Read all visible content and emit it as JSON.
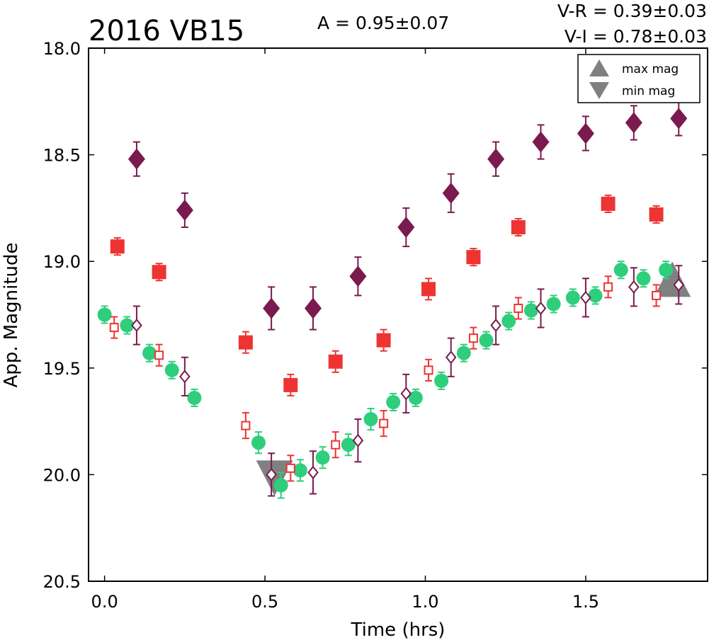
{
  "chart_data": {
    "type": "scatter",
    "title": "2016 VB15",
    "annotations": {
      "amplitude": "A  = 0.95±0.07",
      "v_r": "V-R = 0.39±0.03",
      "v_i": "V-I  = 0.78±0.03"
    },
    "xlabel": "Time (hrs)",
    "ylabel": "App. Magnitude",
    "xlim": [
      -0.05,
      1.88
    ],
    "ylim": [
      20.5,
      18.0
    ],
    "y_inverted": true,
    "x_ticks": [
      "0.0",
      "0.5",
      "1.0",
      "1.5"
    ],
    "y_ticks": [
      "18.0",
      "18.5",
      "19.0",
      "19.5",
      "20.0",
      "20.5"
    ],
    "legend": {
      "placement": "top-right",
      "entries": [
        {
          "label": "max mag",
          "marker": "triangle-up",
          "color": "#808080"
        },
        {
          "label": "min mag",
          "marker": "triangle-down",
          "color": "#808080"
        }
      ]
    },
    "series": [
      {
        "marker": "diamond-filled",
        "color": "#7a1a4e",
        "points": [
          {
            "x": 0.1,
            "y": 18.52,
            "err": 0.08
          },
          {
            "x": 0.25,
            "y": 18.76,
            "err": 0.08
          },
          {
            "x": 0.52,
            "y": 19.22,
            "err": 0.1
          },
          {
            "x": 0.65,
            "y": 19.22,
            "err": 0.1
          },
          {
            "x": 0.79,
            "y": 19.07,
            "err": 0.09
          },
          {
            "x": 0.94,
            "y": 18.84,
            "err": 0.09
          },
          {
            "x": 1.08,
            "y": 18.68,
            "err": 0.09
          },
          {
            "x": 1.22,
            "y": 18.52,
            "err": 0.08
          },
          {
            "x": 1.36,
            "y": 18.44,
            "err": 0.08
          },
          {
            "x": 1.5,
            "y": 18.4,
            "err": 0.08
          },
          {
            "x": 1.65,
            "y": 18.35,
            "err": 0.08
          },
          {
            "x": 1.79,
            "y": 18.33,
            "err": 0.08
          }
        ]
      },
      {
        "marker": "square-filled",
        "color": "#ee3333",
        "points": [
          {
            "x": 0.04,
            "y": 18.93,
            "err": 0.04
          },
          {
            "x": 0.17,
            "y": 19.05,
            "err": 0.04
          },
          {
            "x": 0.44,
            "y": 19.38,
            "err": 0.05
          },
          {
            "x": 0.58,
            "y": 19.58,
            "err": 0.05
          },
          {
            "x": 0.72,
            "y": 19.47,
            "err": 0.05
          },
          {
            "x": 0.87,
            "y": 19.37,
            "err": 0.05
          },
          {
            "x": 1.01,
            "y": 19.13,
            "err": 0.05
          },
          {
            "x": 1.15,
            "y": 18.98,
            "err": 0.04
          },
          {
            "x": 1.29,
            "y": 18.84,
            "err": 0.04
          },
          {
            "x": 1.57,
            "y": 18.73,
            "err": 0.04
          },
          {
            "x": 1.72,
            "y": 18.78,
            "err": 0.04
          }
        ]
      },
      {
        "marker": "circle-filled",
        "color": "#2fce7c",
        "points": [
          {
            "x": 0.0,
            "y": 19.25,
            "err": 0.04
          },
          {
            "x": 0.07,
            "y": 19.3,
            "err": 0.04
          },
          {
            "x": 0.14,
            "y": 19.43,
            "err": 0.04
          },
          {
            "x": 0.21,
            "y": 19.51,
            "err": 0.04
          },
          {
            "x": 0.28,
            "y": 19.64,
            "err": 0.04
          },
          {
            "x": 0.48,
            "y": 19.85,
            "err": 0.05
          },
          {
            "x": 0.55,
            "y": 20.05,
            "err": 0.06
          },
          {
            "x": 0.61,
            "y": 19.98,
            "err": 0.05
          },
          {
            "x": 0.68,
            "y": 19.92,
            "err": 0.05
          },
          {
            "x": 0.76,
            "y": 19.86,
            "err": 0.05
          },
          {
            "x": 0.83,
            "y": 19.74,
            "err": 0.05
          },
          {
            "x": 0.9,
            "y": 19.66,
            "err": 0.04
          },
          {
            "x": 0.97,
            "y": 19.64,
            "err": 0.04
          },
          {
            "x": 1.05,
            "y": 19.56,
            "err": 0.04
          },
          {
            "x": 1.12,
            "y": 19.43,
            "err": 0.04
          },
          {
            "x": 1.19,
            "y": 19.37,
            "err": 0.04
          },
          {
            "x": 1.26,
            "y": 19.28,
            "err": 0.04
          },
          {
            "x": 1.33,
            "y": 19.23,
            "err": 0.04
          },
          {
            "x": 1.4,
            "y": 19.2,
            "err": 0.04
          },
          {
            "x": 1.46,
            "y": 19.17,
            "err": 0.04
          },
          {
            "x": 1.53,
            "y": 19.16,
            "err": 0.04
          },
          {
            "x": 1.61,
            "y": 19.04,
            "err": 0.04
          },
          {
            "x": 1.68,
            "y": 19.08,
            "err": 0.04
          },
          {
            "x": 1.75,
            "y": 19.04,
            "err": 0.04
          }
        ]
      },
      {
        "marker": "square-open",
        "color": "#ee3333",
        "points": [
          {
            "x": 0.03,
            "y": 19.31,
            "err": 0.05
          },
          {
            "x": 0.17,
            "y": 19.44,
            "err": 0.05
          },
          {
            "x": 0.44,
            "y": 19.77,
            "err": 0.06
          },
          {
            "x": 0.58,
            "y": 19.97,
            "err": 0.06
          },
          {
            "x": 0.72,
            "y": 19.86,
            "err": 0.06
          },
          {
            "x": 0.87,
            "y": 19.76,
            "err": 0.06
          },
          {
            "x": 1.01,
            "y": 19.51,
            "err": 0.05
          },
          {
            "x": 1.15,
            "y": 19.36,
            "err": 0.05
          },
          {
            "x": 1.29,
            "y": 19.22,
            "err": 0.05
          },
          {
            "x": 1.57,
            "y": 19.12,
            "err": 0.05
          },
          {
            "x": 1.72,
            "y": 19.16,
            "err": 0.05
          }
        ]
      },
      {
        "marker": "diamond-open",
        "color": "#7a1a4e",
        "points": [
          {
            "x": 0.1,
            "y": 19.3,
            "err": 0.09
          },
          {
            "x": 0.25,
            "y": 19.54,
            "err": 0.09
          },
          {
            "x": 0.52,
            "y": 20.0,
            "err": 0.1
          },
          {
            "x": 0.65,
            "y": 19.99,
            "err": 0.1
          },
          {
            "x": 0.79,
            "y": 19.84,
            "err": 0.1
          },
          {
            "x": 0.94,
            "y": 19.62,
            "err": 0.09
          },
          {
            "x": 1.08,
            "y": 19.45,
            "err": 0.09
          },
          {
            "x": 1.22,
            "y": 19.3,
            "err": 0.09
          },
          {
            "x": 1.36,
            "y": 19.22,
            "err": 0.09
          },
          {
            "x": 1.5,
            "y": 19.17,
            "err": 0.09
          },
          {
            "x": 1.65,
            "y": 19.12,
            "err": 0.09
          },
          {
            "x": 1.79,
            "y": 19.11,
            "err": 0.09
          }
        ]
      }
    ],
    "markers": {
      "max_mag": {
        "x": 1.77,
        "y": 19.1,
        "marker": "triangle-up",
        "color": "#808080"
      },
      "min_mag": {
        "x": 0.53,
        "y": 20.0,
        "marker": "triangle-down",
        "color": "#808080"
      }
    }
  }
}
